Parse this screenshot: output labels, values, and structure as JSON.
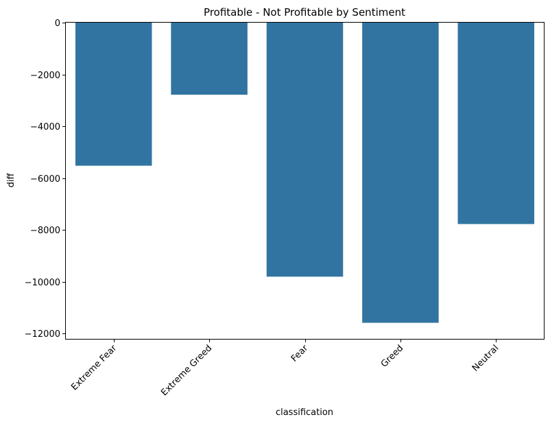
{
  "chart_data": {
    "type": "bar",
    "title": "Profitable - Not Profitable by Sentiment",
    "xlabel": "classification",
    "ylabel": "diff",
    "categories": [
      "Extreme Fear",
      "Extreme Greed",
      "Fear",
      "Greed",
      "Neutral"
    ],
    "values": [
      -5520,
      -2780,
      -9800,
      -11580,
      -7770
    ],
    "ylim": [
      -12200,
      0
    ],
    "yticks": [
      0,
      -2000,
      -4000,
      -6000,
      -8000,
      -10000,
      -12000
    ],
    "ytick_labels": [
      "0",
      "−2000",
      "−4000",
      "−6000",
      "−8000",
      "−10000",
      "−12000"
    ],
    "grid": false,
    "legend": "none",
    "bar_color": "#3274a1",
    "xtick_rotation": 45
  }
}
